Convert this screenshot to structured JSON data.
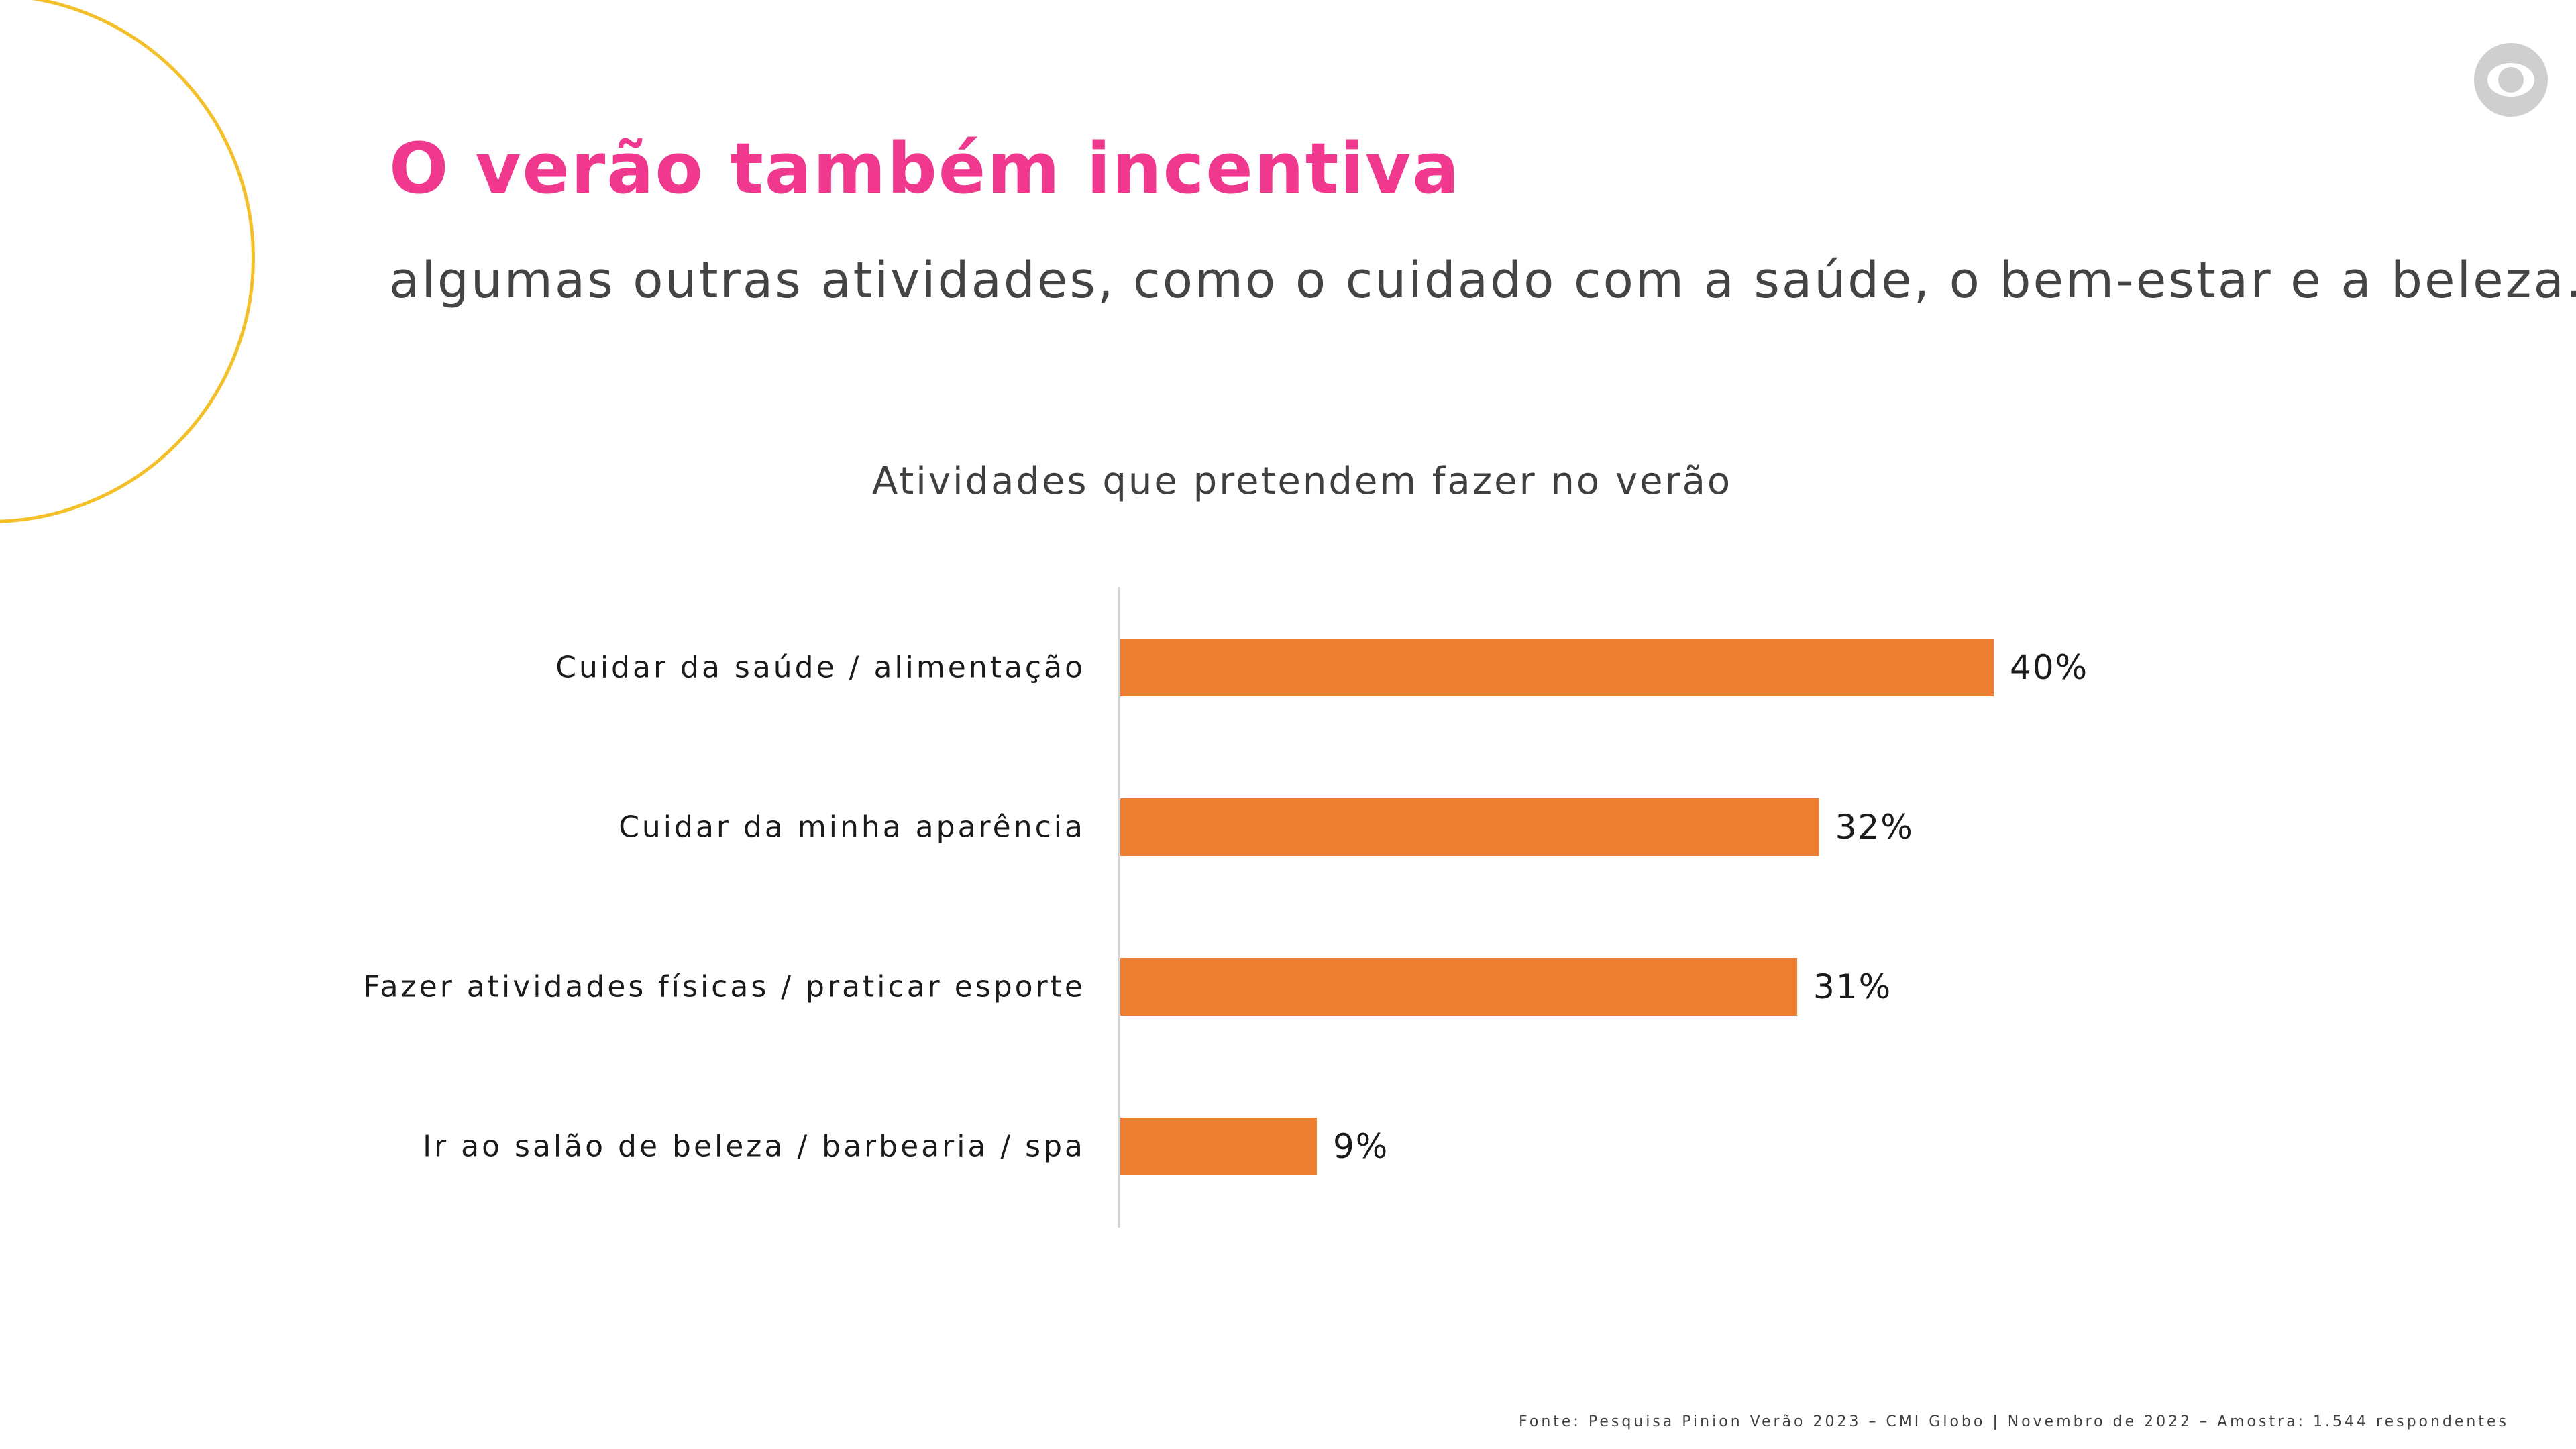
{
  "slide": {
    "title": "O verão também incentiva",
    "subtitle": "algumas outras atividades, como o cuidado com a saúde, o bem-estar e a beleza.",
    "footer": "Fonte: Pesquisa Pinion Verão 2023 – CMI Globo | Novembro de 2022 – Amostra: 1.544 respondentes",
    "logo_icon": "globo-logo-icon"
  },
  "colors": {
    "title": "#f0388e",
    "bar": "#ed7d31",
    "decorative_circle": "#f4c02a",
    "logo": "#cfcfcf"
  },
  "chart_data": {
    "type": "bar",
    "orientation": "horizontal",
    "title": "Atividades que pretendem fazer no verão",
    "categories": [
      "Cuidar da saúde / alimentação",
      "Cuidar da minha aparência",
      "Fazer atividades físicas / praticar esporte",
      "Ir ao salão de beleza / barbearia / spa"
    ],
    "values": [
      40,
      32,
      31,
      9
    ],
    "value_labels": [
      "40%",
      "32%",
      "31%",
      "9%"
    ],
    "unit": "%",
    "xlim": [
      0,
      40
    ],
    "grid": false,
    "legend": "none"
  }
}
